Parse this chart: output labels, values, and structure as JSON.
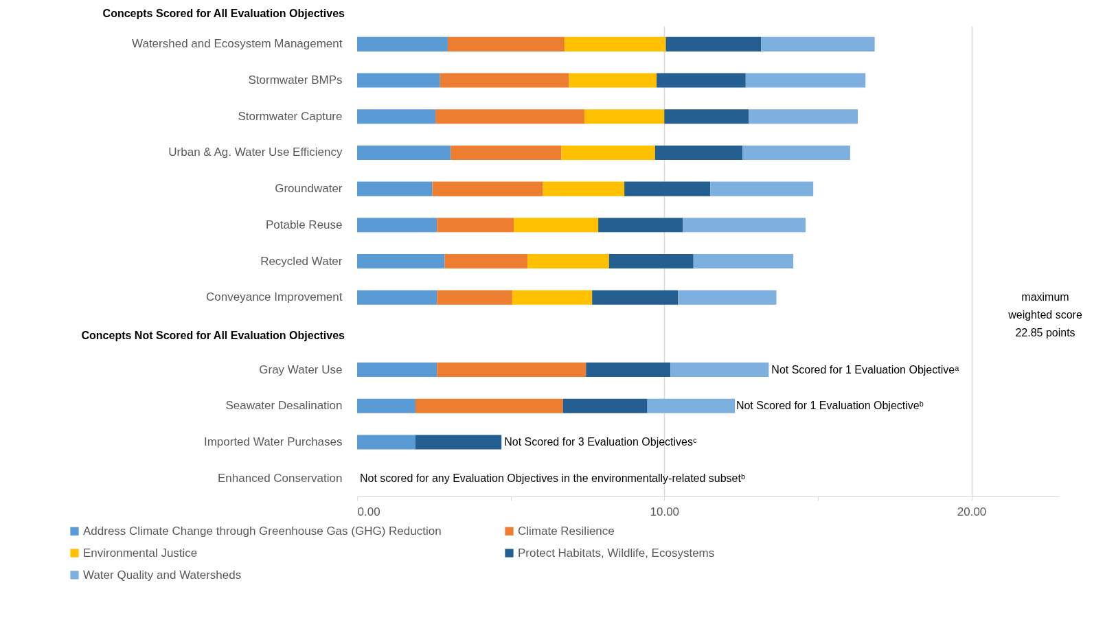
{
  "chart_data": {
    "type": "bar",
    "orientation": "horizontal",
    "stacked": true,
    "categories": [
      "Watershed and Ecosystem Management",
      "Stormwater BMPs",
      "Stormwater Capture",
      "Urban & Ag. Water Use Efficiency",
      "Groundwater",
      "Potable Reuse",
      "Recycled Water",
      "Conveyance Improvement",
      null,
      "Gray Water Use",
      "Seawater Desalination",
      "Imported Water Purchases",
      "Enhanced Conservation"
    ],
    "series": [
      {
        "name": "Address Climate Change through Greenhouse Gas (GHG) Reduction",
        "color": "#5b9bd5",
        "values": [
          2.95,
          2.7,
          2.55,
          3.05,
          2.45,
          2.6,
          2.85,
          2.6,
          null,
          2.6,
          1.9,
          1.9,
          null
        ]
      },
      {
        "name": "Climate Resilience",
        "color": "#ed7d31",
        "values": [
          3.8,
          4.2,
          4.85,
          3.6,
          3.6,
          2.5,
          2.7,
          2.45,
          null,
          4.85,
          4.8,
          null,
          null
        ]
      },
      {
        "name": "Environmental Justice",
        "color": "#ffc000",
        "values": [
          3.3,
          2.85,
          2.6,
          3.05,
          2.65,
          2.75,
          2.65,
          2.6,
          null,
          null,
          null,
          null,
          null
        ]
      },
      {
        "name": "Protect Habitats, Wildlife, Ecosystems",
        "color": "#255e91",
        "values": [
          3.1,
          2.9,
          2.75,
          2.85,
          2.8,
          2.75,
          2.75,
          2.8,
          null,
          2.75,
          2.75,
          2.8,
          null
        ]
      },
      {
        "name": "Water Quality and Watersheds",
        "color": "#7eb0df",
        "values": [
          3.7,
          3.9,
          3.55,
          3.5,
          3.35,
          4.0,
          3.25,
          3.2,
          null,
          3.2,
          2.85,
          null,
          null
        ]
      }
    ],
    "xlim": [
      0,
      22.85
    ],
    "xticks": [
      {
        "value": 0,
        "label": "0.00"
      },
      {
        "value": 5,
        "label": null
      },
      {
        "value": 10,
        "label": "10.00"
      },
      {
        "value": 15,
        "label": null
      },
      {
        "value": 20,
        "label": "20.00"
      }
    ],
    "grid": "x",
    "legend": "bottom",
    "annotations": [
      "Concepts Scored for All Evaluation Objectives",
      "Concepts Not Scored for All Evaluation Objectives",
      {
        "text": "Not Scored for 1 Evaluation Objectiveᵃ",
        "x": 13.4,
        "y": "Gray Water Use"
      },
      {
        "text": "Not Scored for 1 Evaluation Objectiveᵇ",
        "x": 12.25,
        "y": "Seawater Desalination"
      },
      {
        "text": "Not Scored for 3 Evaluation Objectivesᶜ",
        "x": 4.7,
        "y": "Imported Water Purchases"
      },
      "Not scored for any Evaluation Objectives in the environmentally-related subsetᵇ",
      "maximum\nweighted score\n22.85 points"
    ]
  }
}
